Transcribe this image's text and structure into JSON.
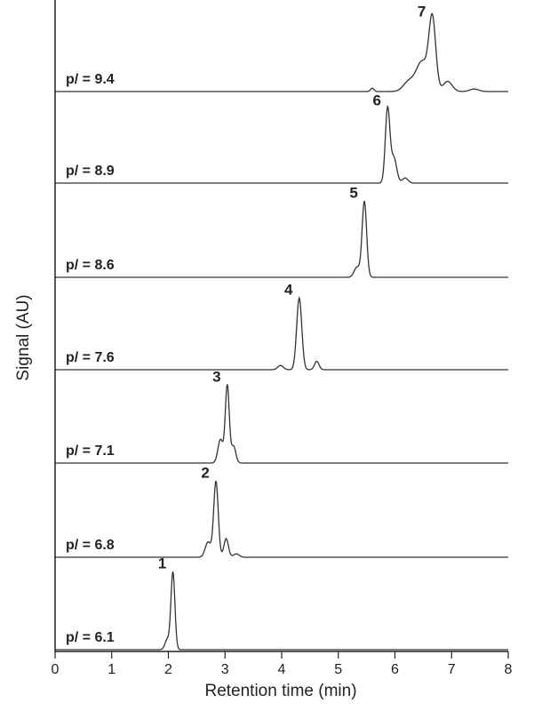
{
  "chart_data": {
    "type": "line",
    "xlabel": "Retention time (min)",
    "ylabel": "Signal  (AU)",
    "xlim": [
      0,
      8
    ],
    "xticks": [
      "0",
      "1",
      "2",
      "3",
      "4",
      "5",
      "6",
      "7",
      "8"
    ],
    "grid": false,
    "legend": "none",
    "line_color": "#333333",
    "series": [
      {
        "name": "pI = 6.1",
        "label": "p/ = 6.1",
        "peak_label": "1",
        "peaks": [
          {
            "t": 2.08,
            "h": 0.92,
            "w": 0.035
          },
          {
            "t": 1.98,
            "h": 0.12,
            "w": 0.04
          }
        ]
      },
      {
        "name": "pI = 6.8",
        "label": "p/ = 6.8",
        "peak_label": "2",
        "peaks": [
          {
            "t": 2.84,
            "h": 0.9,
            "w": 0.04
          },
          {
            "t": 2.7,
            "h": 0.18,
            "w": 0.05
          },
          {
            "t": 3.02,
            "h": 0.22,
            "w": 0.04
          },
          {
            "t": 3.2,
            "h": 0.04,
            "w": 0.05
          }
        ]
      },
      {
        "name": "pI = 7.1",
        "label": "p/ = 7.1",
        "peak_label": "3",
        "peaks": [
          {
            "t": 3.04,
            "h": 0.92,
            "w": 0.035
          },
          {
            "t": 2.92,
            "h": 0.28,
            "w": 0.045
          },
          {
            "t": 3.15,
            "h": 0.2,
            "w": 0.04
          }
        ]
      },
      {
        "name": "pI = 7.6",
        "label": "p/ = 7.6",
        "peak_label": "4",
        "peaks": [
          {
            "t": 4.31,
            "h": 0.85,
            "w": 0.045
          },
          {
            "t": 3.98,
            "h": 0.05,
            "w": 0.05
          },
          {
            "t": 4.62,
            "h": 0.1,
            "w": 0.04
          }
        ]
      },
      {
        "name": "pI = 8.6",
        "label": "p/ = 8.6",
        "peak_label": "5",
        "peaks": [
          {
            "t": 5.46,
            "h": 0.9,
            "w": 0.04
          },
          {
            "t": 5.33,
            "h": 0.12,
            "w": 0.05
          }
        ]
      },
      {
        "name": "pI = 8.9",
        "label": "p/ = 8.9",
        "peak_label": "6",
        "peaks": [
          {
            "t": 5.87,
            "h": 0.88,
            "w": 0.04
          },
          {
            "t": 5.98,
            "h": 0.3,
            "w": 0.05
          },
          {
            "t": 6.18,
            "h": 0.06,
            "w": 0.05
          }
        ]
      },
      {
        "name": "pI = 9.4",
        "label": "p/ = 9.4",
        "peak_label": "7",
        "peaks": [
          {
            "t": 6.66,
            "h": 0.85,
            "w": 0.06
          },
          {
            "t": 6.48,
            "h": 0.35,
            "w": 0.1
          },
          {
            "t": 6.25,
            "h": 0.12,
            "w": 0.1
          },
          {
            "t": 6.93,
            "h": 0.12,
            "w": 0.08
          },
          {
            "t": 7.4,
            "h": 0.03,
            "w": 0.08
          },
          {
            "t": 5.6,
            "h": 0.04,
            "w": 0.03
          }
        ]
      }
    ]
  }
}
